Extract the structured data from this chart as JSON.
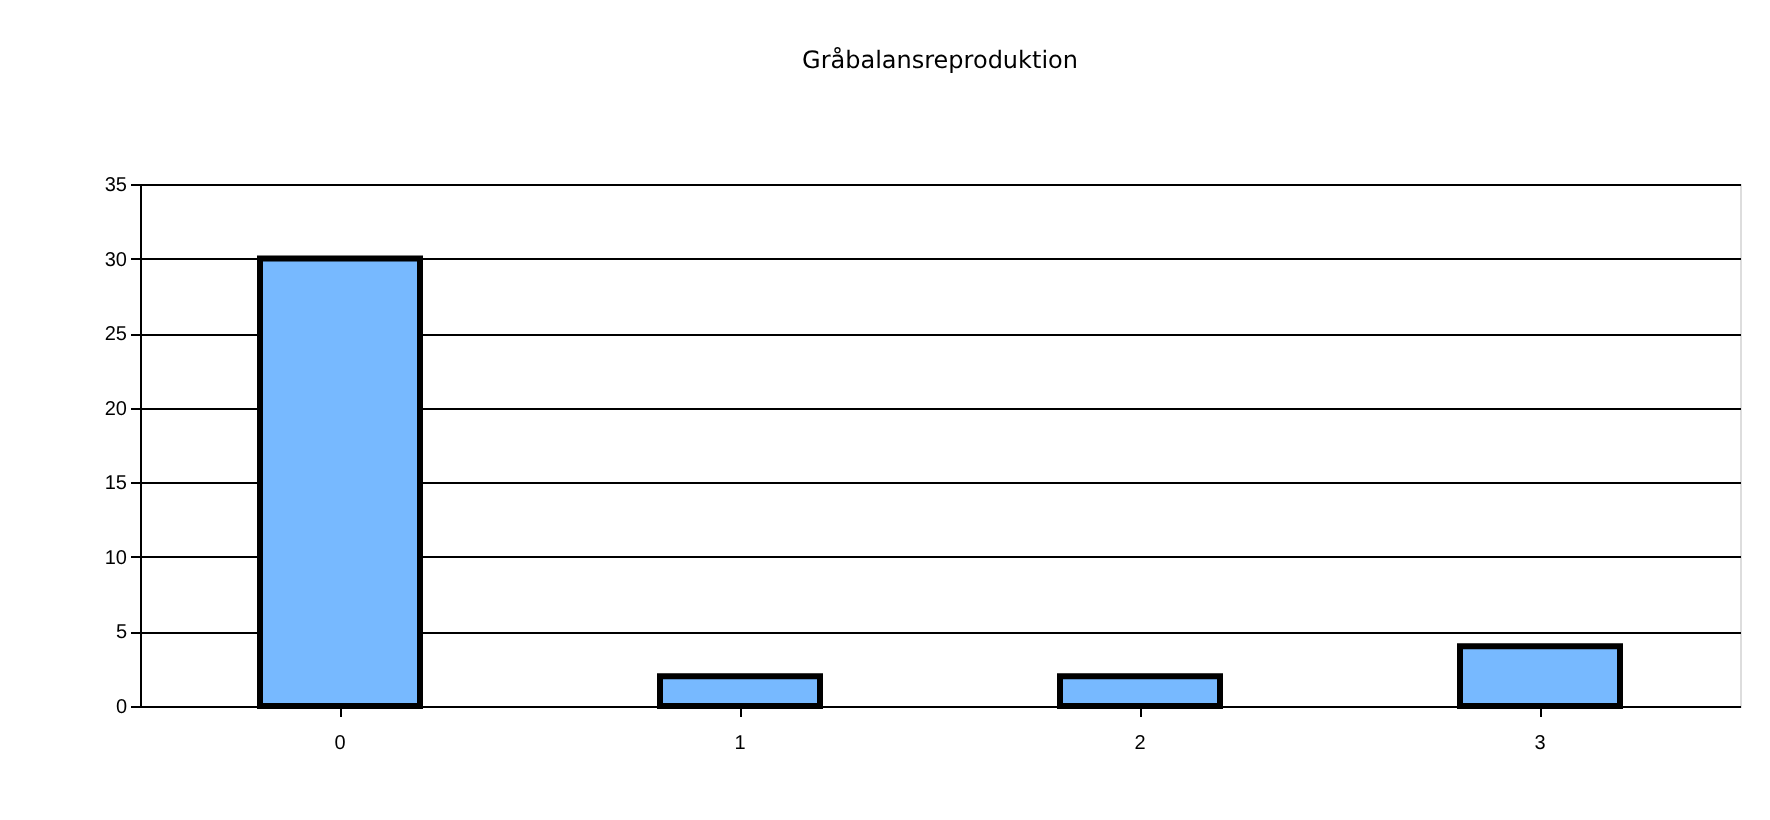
{
  "chart_data": {
    "type": "bar",
    "title": "Gråbalansreproduktion",
    "categories": [
      "0",
      "1",
      "2",
      "3"
    ],
    "values": [
      30,
      2,
      2,
      4
    ],
    "color": "#77b9ff",
    "ylim": [
      0,
      35
    ],
    "yticks": [
      0,
      5,
      10,
      15,
      20,
      25,
      30,
      35
    ],
    "grid": "y"
  }
}
